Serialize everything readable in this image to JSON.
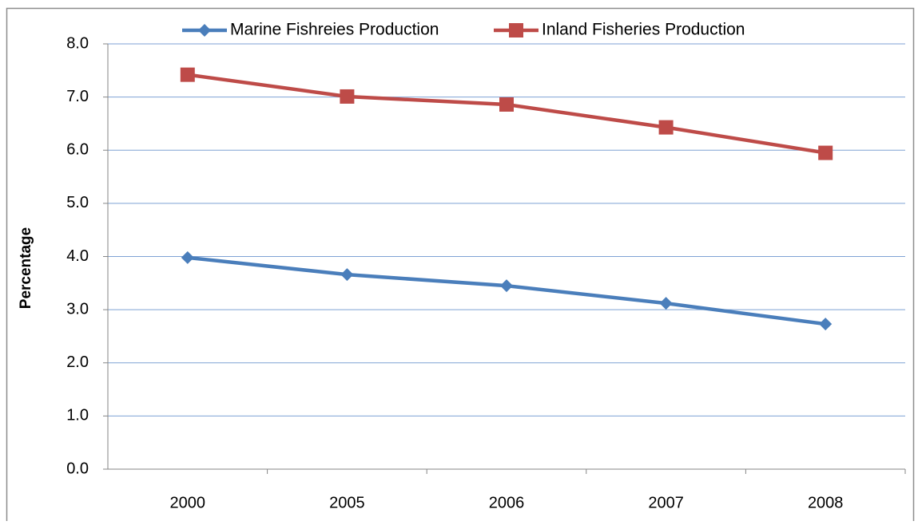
{
  "chart_data": {
    "type": "line",
    "y_label": "Percentage",
    "categories": [
      "2000",
      "2005",
      "2006",
      "2007",
      "2008"
    ],
    "series": [
      {
        "name": "Marine Fishreies Production",
        "color": "#4a7ebb",
        "marker": "diamond",
        "values": [
          3.98,
          3.66,
          3.45,
          3.12,
          2.73
        ]
      },
      {
        "name": "Inland Fisheries Production",
        "color": "#be4b48",
        "marker": "square",
        "values": [
          7.42,
          7.01,
          6.86,
          6.43,
          5.95
        ]
      }
    ],
    "ylim": [
      0,
      8
    ],
    "yticks": [
      {
        "value": 0,
        "label": "0.0"
      },
      {
        "value": 1,
        "label": "1.0"
      },
      {
        "value": 2,
        "label": "2.0"
      },
      {
        "value": 3,
        "label": "3.0"
      },
      {
        "value": 4,
        "label": "4.0"
      },
      {
        "value": 5,
        "label": "5.0"
      },
      {
        "value": 6,
        "label": "6.0"
      },
      {
        "value": 7,
        "label": "7.0"
      },
      {
        "value": 8,
        "label": "8.0"
      }
    ],
    "grid": true,
    "legend": "top"
  }
}
